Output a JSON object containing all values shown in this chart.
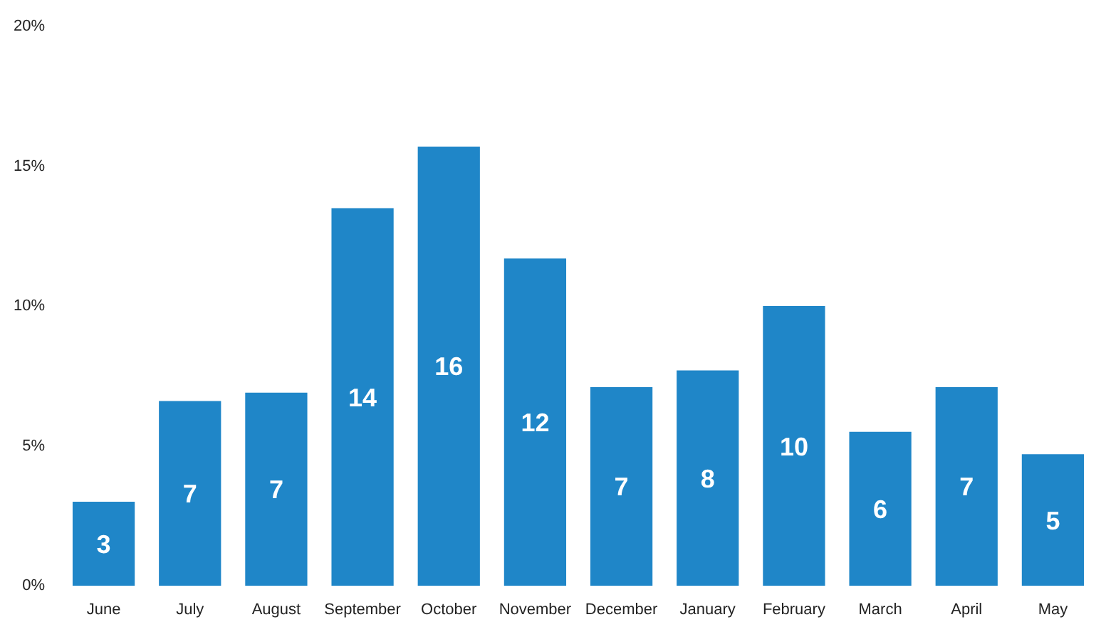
{
  "chart_data": {
    "type": "bar",
    "categories": [
      "June",
      "July",
      "August",
      "September",
      "October",
      "November",
      "December",
      "January",
      "February",
      "March",
      "April",
      "May"
    ],
    "values": [
      3.0,
      6.6,
      6.9,
      13.5,
      15.7,
      11.7,
      7.1,
      7.7,
      10.0,
      5.5,
      7.1,
      4.7
    ],
    "value_labels": [
      "3",
      "7",
      "7",
      "14",
      "16",
      "12",
      "7",
      "8",
      "10",
      "6",
      "7",
      "5"
    ],
    "color": "#1f86c8",
    "ylim": [
      0,
      20
    ],
    "yticks": [
      {
        "value": 0,
        "label": "0%"
      },
      {
        "value": 5,
        "label": "5%"
      },
      {
        "value": 10,
        "label": "10%"
      },
      {
        "value": 15,
        "label": "15%"
      },
      {
        "value": 20,
        "label": "20%"
      }
    ],
    "grid": false
  }
}
